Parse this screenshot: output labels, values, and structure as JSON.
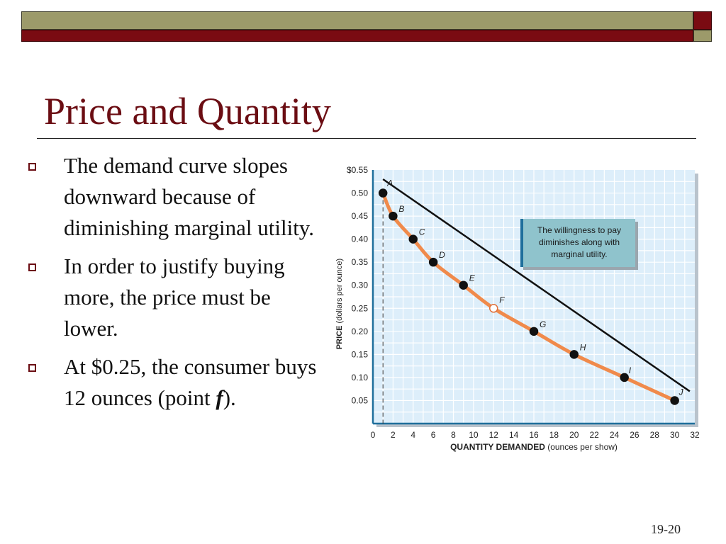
{
  "slide": {
    "title": "Price and Quantity",
    "bullets": [
      {
        "text": "The demand curve slopes downward because of diminishing marginal utility."
      },
      {
        "text_before": "In order to justify buying more, the price must be lower."
      },
      {
        "text_before": "At $0.25, the consumer buys 12 ounces (point ",
        "emphasis": "f",
        "text_after": ")."
      }
    ],
    "slide_number": "19-20"
  },
  "colors": {
    "title": "#6b0d13",
    "bar_olive": "#9c9a6a",
    "bar_red": "#7a0b12",
    "chart_bg": "#ddeefa",
    "curve": "#f08a4b",
    "callout_bg": "#8fc3cc"
  },
  "chart_data": {
    "type": "line",
    "title": "",
    "xlabel_bold": "QUANTITY DEMANDED",
    "xlabel_rest": "(ounces per show)",
    "ylabel_bold": "PRICE",
    "ylabel_rest": "(dollars per ounce)",
    "xlim": [
      0,
      32
    ],
    "ylim": [
      0,
      0.55
    ],
    "x_ticks": [
      "0",
      "2",
      "4",
      "6",
      "8",
      "10",
      "12",
      "14",
      "16",
      "18",
      "20",
      "22",
      "24",
      "26",
      "28",
      "30",
      "32"
    ],
    "y_ticks": [
      "0.05",
      "0.10",
      "0.15",
      "0.20",
      "0.25",
      "0.30",
      "0.35",
      "0.40",
      "0.45",
      "0.50",
      "$0.55"
    ],
    "grid": true,
    "series": [
      {
        "points": [
          {
            "label": "A",
            "x": 1,
            "y": 0.5,
            "filled": true
          },
          {
            "label": "B",
            "x": 2,
            "y": 0.45,
            "filled": true
          },
          {
            "label": "C",
            "x": 4,
            "y": 0.4,
            "filled": true
          },
          {
            "label": "D",
            "x": 6,
            "y": 0.35,
            "filled": true
          },
          {
            "label": "E",
            "x": 9,
            "y": 0.3,
            "filled": true
          },
          {
            "label": "F",
            "x": 12,
            "y": 0.25,
            "filled": false
          },
          {
            "label": "G",
            "x": 16,
            "y": 0.2,
            "filled": true
          },
          {
            "label": "H",
            "x": 20,
            "y": 0.15,
            "filled": true
          },
          {
            "label": "I",
            "x": 25,
            "y": 0.1,
            "filled": true
          },
          {
            "label": "J",
            "x": 30,
            "y": 0.05,
            "filled": true
          }
        ]
      }
    ],
    "reference_line": {
      "from": {
        "x": 1,
        "y": 0.53
      },
      "to": {
        "x": 31.5,
        "y": 0.07
      }
    },
    "dashed_vertical_x": 1,
    "callout": "The willingness to pay diminishes along with marginal utility."
  }
}
